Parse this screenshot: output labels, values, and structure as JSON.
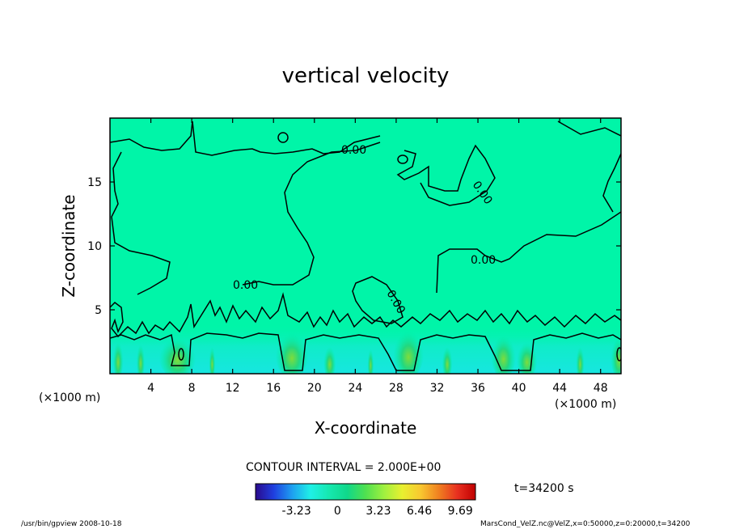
{
  "chart_data": {
    "type": "heatmap",
    "title": "vertical velocity",
    "xlabel": "X-coordinate",
    "ylabel": "Z-coordinate",
    "x_unit": "(×1000 m)",
    "y_unit": "(×1000 m)",
    "xlim": [
      0,
      50
    ],
    "ylim": [
      0,
      20
    ],
    "x_ticks": [
      "4",
      "8",
      "12",
      "16",
      "20",
      "24",
      "28",
      "32",
      "36",
      "40",
      "44",
      "48"
    ],
    "y_ticks": [
      "5",
      "10",
      "15"
    ],
    "contour_labels": [
      "0.00",
      "0.00",
      "0.00",
      "0.00",
      "0.00"
    ],
    "contour_interval": "CONTOUR INTERVAL = 2.000E+00",
    "time_label": "t=34200 s",
    "colorbar_ticks": [
      "-3.23",
      "0",
      "3.23",
      "6.46",
      "9.69"
    ],
    "colorbar_colors": [
      "#2a0a8c",
      "#1f3fe0",
      "#1ea0f0",
      "#1ff0e6",
      "#16e8b0",
      "#10d88a",
      "#4fe050",
      "#9ef040",
      "#e8f030",
      "#f8c830",
      "#f08020",
      "#e83020",
      "#c00000"
    ],
    "background_color": "#00f5a8",
    "footer_left": "/usr/bin/gpview   2008-10-18",
    "footer_right": "MarsCond_VelZ.nc@VelZ,x=0:50000,z=0:20000,t=34200",
    "cells": [
      {
        "x": 0.8,
        "z": 1.2,
        "w": 0.5
      },
      {
        "x": 3.0,
        "z": 1.1,
        "w": 0.4
      },
      {
        "x": 6.6,
        "z": 1.4,
        "w": 1.8
      },
      {
        "x": 10.0,
        "z": 1.0,
        "w": 0.3
      },
      {
        "x": 17.8,
        "z": 1.6,
        "w": 1.6
      },
      {
        "x": 21.5,
        "z": 1.0,
        "w": 0.6
      },
      {
        "x": 25.5,
        "z": 0.9,
        "w": 0.3
      },
      {
        "x": 29.2,
        "z": 1.7,
        "w": 1.5
      },
      {
        "x": 33.0,
        "z": 1.0,
        "w": 0.5
      },
      {
        "x": 38.5,
        "z": 1.5,
        "w": 1.2
      },
      {
        "x": 40.8,
        "z": 1.2,
        "w": 1.0
      },
      {
        "x": 46.0,
        "z": 1.0,
        "w": 0.4
      },
      {
        "x": 49.8,
        "z": 1.4,
        "w": 0.8
      }
    ]
  }
}
